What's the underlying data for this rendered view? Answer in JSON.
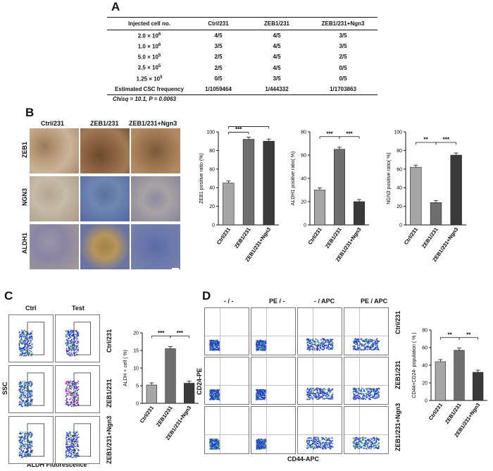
{
  "panel_a": {
    "label": "A",
    "headers": [
      "Injected cell no.",
      "Ctrl/231",
      "ZEB1/231",
      "ZEB1/231+Ngn3"
    ],
    "rows": [
      {
        "cells": [
          "2.0 × 10",
          "4/5",
          "4/5",
          "3/5"
        ],
        "exp": "6"
      },
      {
        "cells": [
          "1.0 × 10",
          "3/5",
          "4/5",
          "3/5"
        ],
        "exp": "6"
      },
      {
        "cells": [
          "5.0 × 10",
          "2/5",
          "4/5",
          "2/5"
        ],
        "exp": "5"
      },
      {
        "cells": [
          "2.5 × 10",
          "2/5",
          "4/5",
          "0/5"
        ],
        "exp": "5"
      },
      {
        "cells": [
          "1.25 × 10",
          "0/5",
          "3/5",
          "0/5"
        ],
        "exp": "5"
      }
    ],
    "freq_row": [
      "Estimated CSC frequency",
      "1/1059464",
      "1/444332",
      "1/1703863"
    ],
    "stat": "Chisq = 10.1,  P = 0.0063"
  },
  "panel_b": {
    "label": "B",
    "col_labels": [
      "Ctrl/231",
      "ZEB1/231",
      "ZEB1/231+Ngn3"
    ],
    "row_labels": [
      "ZEB1",
      "NGN3",
      "ALDH1"
    ]
  },
  "panel_c": {
    "label": "C",
    "col_labels": [
      "Ctrl",
      "Test"
    ],
    "row_labels": [
      "Ctrl/231",
      "ZEB1/231",
      "ZEB1/231+Ngn3"
    ],
    "x_axis": "ALDH Fluorescence",
    "y_axis": "SSC"
  },
  "panel_d": {
    "label": "D",
    "col_labels": [
      "- / -",
      "PE / -",
      "- / APC",
      "PE / APC"
    ],
    "row_labels": [
      "Ctrl/231",
      "ZEB1/231",
      "ZEB1/231+Ngn3"
    ],
    "x_axis": "CD44-APC",
    "y_axis": "CD24-PE"
  },
  "chart_data": [
    {
      "type": "bar",
      "panel": "B",
      "categories": [
        "Ctrl/231",
        "ZEB1/231",
        "ZEB1/231+Ngn3"
      ],
      "values": [
        45,
        92,
        90
      ],
      "ylabel": "ZEB1 positive ratio (%)",
      "ylim": [
        0,
        100
      ],
      "yticks": [
        0,
        20,
        40,
        60,
        80,
        100
      ],
      "significance": [
        "***",
        "***"
      ],
      "colors": [
        "#a6a6a6",
        "#6e6e6e",
        "#3a3a3a"
      ]
    },
    {
      "type": "bar",
      "panel": "B",
      "categories": [
        "Ctrl/231",
        "ZEB1/231",
        "ZEB1/231+Ngn3"
      ],
      "values": [
        30,
        65,
        20
      ],
      "ylabel": "ALDH1 positive ratio( %)",
      "ylim": [
        0,
        80
      ],
      "yticks": [
        0,
        20,
        40,
        60,
        80
      ],
      "significance": [
        "***",
        "***"
      ],
      "colors": [
        "#a6a6a6",
        "#6e6e6e",
        "#3a3a3a"
      ]
    },
    {
      "type": "bar",
      "panel": "B",
      "categories": [
        "Ctrl/231",
        "ZEB1/231",
        "ZEB1/231+Ngn3"
      ],
      "values": [
        62,
        24,
        75
      ],
      "ylabel": "NGN3 positive ratio( %)",
      "ylim": [
        0,
        100
      ],
      "yticks": [
        0,
        20,
        40,
        60,
        80,
        100
      ],
      "significance": [
        "**",
        "***"
      ],
      "colors": [
        "#a6a6a6",
        "#6e6e6e",
        "#3a3a3a"
      ]
    },
    {
      "type": "bar",
      "panel": "C",
      "categories": [
        "Ctrl/231",
        "ZEB1/231",
        "ZEB1/231+Ngn3"
      ],
      "values": [
        5.2,
        15.5,
        5.7
      ],
      "ylabel": "ALDH + cell ( %)",
      "ylim": [
        0,
        20
      ],
      "yticks": [
        0,
        5,
        10,
        15,
        20
      ],
      "significance": [
        "***",
        "***"
      ],
      "colors": [
        "#a6a6a6",
        "#6e6e6e",
        "#3a3a3a"
      ]
    },
    {
      "type": "bar",
      "panel": "D",
      "categories": [
        "Ctrl/231",
        "ZEB1/231",
        "ZEB1/231+Ngn3"
      ],
      "values": [
        44,
        57,
        32
      ],
      "ylabel": "CD44+CD24- population ( % )",
      "ylim": [
        0,
        80
      ],
      "yticks": [
        0,
        20,
        40,
        60,
        80
      ],
      "significance": [
        "**",
        "**"
      ],
      "colors": [
        "#a6a6a6",
        "#6e6e6e",
        "#3a3a3a"
      ]
    }
  ]
}
